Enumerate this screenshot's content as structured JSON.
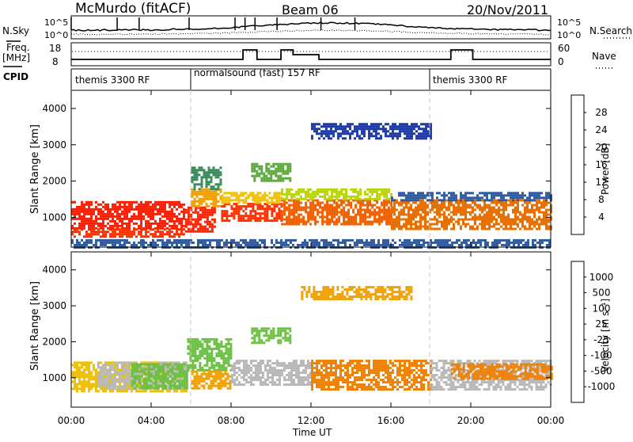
{
  "header": {
    "station": "McMurdo (fitACF)",
    "beam": "Beam 06",
    "date": "20/Nov/2011"
  },
  "top_panel": {
    "left_label": "N.Sky",
    "right_label": "N.Search",
    "left_ticks": [
      "10^5",
      "10^0"
    ],
    "right_ticks": [
      "10^5",
      "10^0"
    ]
  },
  "freq_panel": {
    "left_label_line1": "Freq.",
    "left_label_line2": "[MHz]",
    "right_label": "Nave",
    "left_ticks": [
      "18",
      "8"
    ],
    "right_ticks": [
      "60",
      "0"
    ],
    "freq_steps": [
      {
        "start": 0,
        "end": 8.6,
        "level": "low"
      },
      {
        "start": 8.6,
        "end": 9.3,
        "level": "high"
      },
      {
        "start": 9.3,
        "end": 10.5,
        "level": "low"
      },
      {
        "start": 10.5,
        "end": 11.1,
        "level": "high"
      },
      {
        "start": 11.1,
        "end": 12.4,
        "level": "mid"
      },
      {
        "start": 12.4,
        "end": 19.0,
        "level": "low"
      },
      {
        "start": 19.0,
        "end": 20.1,
        "level": "high"
      },
      {
        "start": 20.1,
        "end": 24,
        "level": "low"
      }
    ]
  },
  "cpid": {
    "label": "CPID",
    "segments": [
      {
        "start_hour": 0,
        "end_hour": 6,
        "text": "themis 3300 RF"
      },
      {
        "start_hour": 6,
        "end_hour": 18,
        "text": "normalsound (fast) 157 RF"
      },
      {
        "start_hour": 18,
        "end_hour": 24,
        "text": "themis 3300 RF"
      }
    ]
  },
  "x_axis": {
    "title": "Time UT",
    "ticks": [
      "00:00",
      "04:00",
      "08:00",
      "12:00",
      "16:00",
      "20:00",
      "00:00"
    ],
    "hours": [
      0,
      4,
      8,
      12,
      16,
      20,
      24
    ]
  },
  "power_panel": {
    "ylabel": "Slant Range [km]",
    "yticks": [
      "1000",
      "2000",
      "3000",
      "4000"
    ],
    "colorbar_title": "Power [dB]",
    "colorbar_ticks": [
      "28",
      "24",
      "20",
      "16",
      "12",
      "8",
      "4"
    ],
    "colorbar_colors": [
      "#0000ff",
      "#0000ff",
      "#1b3aa8",
      "#2e5aa0",
      "#3a8a5a",
      "#5aa83a",
      "#b8d400",
      "#f0d000",
      "#f0a000",
      "#e87000",
      "#f04000",
      "#ff0000"
    ]
  },
  "velocity_panel": {
    "ylabel": "Slant Range [km]",
    "yticks": [
      "1000",
      "2000",
      "3000",
      "4000"
    ],
    "colorbar_title": "Velocity [m s⁻¹]",
    "colorbar_ticks": [
      "1000",
      "500",
      "100",
      "25",
      "-25",
      "-100",
      "-500",
      "-1000"
    ],
    "colorbar_colors": [
      "#2040c0",
      "#2a5ab0",
      "#2e7a6a",
      "#3aa060",
      "#6ac040",
      "#b8b8b8",
      "#b8b8b8",
      "#f0c000",
      "#f0a000",
      "#e88000",
      "#f06000",
      "#ff2000",
      "#ff0000"
    ]
  },
  "chart_data": {
    "type": "heatmap",
    "x_range_hours": [
      0,
      24
    ],
    "y_range_km": [
      180,
      4500
    ],
    "power_regions": [
      {
        "t0": 0,
        "t1": 5.7,
        "r0": 700,
        "r1": 1450,
        "color": "#ff1a00"
      },
      {
        "t0": 0,
        "t1": 5.7,
        "r0": 500,
        "r1": 700,
        "color": "#ff3000"
      },
      {
        "t0": 5.7,
        "t1": 7.2,
        "r0": 600,
        "r1": 1300,
        "color": "#ff2000"
      },
      {
        "t0": 6.0,
        "t1": 7.5,
        "r0": 1300,
        "r1": 1800,
        "color": "#f0a000"
      },
      {
        "t0": 6.0,
        "t1": 7.5,
        "r0": 1800,
        "r1": 2400,
        "color": "#3a8a5a"
      },
      {
        "t0": 7.5,
        "t1": 10.5,
        "r0": 900,
        "r1": 1400,
        "color": "#ff3000"
      },
      {
        "t0": 7.5,
        "t1": 10.5,
        "r0": 1400,
        "r1": 1700,
        "color": "#f0c000"
      },
      {
        "t0": 9.0,
        "t1": 11.0,
        "r0": 2000,
        "r1": 2500,
        "color": "#5aa83a"
      },
      {
        "t0": 10.5,
        "t1": 16.0,
        "r0": 800,
        "r1": 1500,
        "color": "#f06000"
      },
      {
        "t0": 10.5,
        "t1": 16.0,
        "r0": 1500,
        "r1": 1800,
        "color": "#b8d400"
      },
      {
        "t0": 16.0,
        "t1": 24,
        "r0": 700,
        "r1": 1500,
        "color": "#e87000"
      },
      {
        "t0": 16.0,
        "t1": 24,
        "r0": 1500,
        "r1": 1700,
        "color": "#2e5aa0"
      },
      {
        "t0": 12.0,
        "t1": 18.0,
        "r0": 3200,
        "r1": 3600,
        "color": "#1b3aa8"
      },
      {
        "t0": 0,
        "t1": 24,
        "r0": 200,
        "r1": 400,
        "color": "#2e5aa0"
      }
    ],
    "velocity_regions": [
      {
        "t0": 0,
        "t1": 5.8,
        "r0": 600,
        "r1": 1450,
        "color": "#f0c000"
      },
      {
        "t0": 1.3,
        "t1": 5.8,
        "r0": 700,
        "r1": 1450,
        "color": "#b8b8b8"
      },
      {
        "t0": 3.0,
        "t1": 5.8,
        "r0": 700,
        "r1": 1400,
        "color": "#6ac040"
      },
      {
        "t0": 5.8,
        "t1": 8.0,
        "r0": 1200,
        "r1": 2100,
        "color": "#6ac040"
      },
      {
        "t0": 6.0,
        "t1": 8.0,
        "r0": 700,
        "r1": 1200,
        "color": "#f0a000"
      },
      {
        "t0": 8.0,
        "t1": 12.0,
        "r0": 800,
        "r1": 1500,
        "color": "#b8b8b8"
      },
      {
        "t0": 9.0,
        "t1": 11.0,
        "r0": 2000,
        "r1": 2400,
        "color": "#6ac040"
      },
      {
        "t0": 12.0,
        "t1": 18.0,
        "r0": 700,
        "r1": 1500,
        "color": "#f08000"
      },
      {
        "t0": 18.0,
        "t1": 24,
        "r0": 700,
        "r1": 1500,
        "color": "#b8b8b8"
      },
      {
        "t0": 19.0,
        "t1": 24,
        "r0": 1000,
        "r1": 1400,
        "color": "#f08000"
      },
      {
        "t0": 11.5,
        "t1": 17.0,
        "r0": 3200,
        "r1": 3550,
        "color": "#f0a000"
      }
    ]
  }
}
